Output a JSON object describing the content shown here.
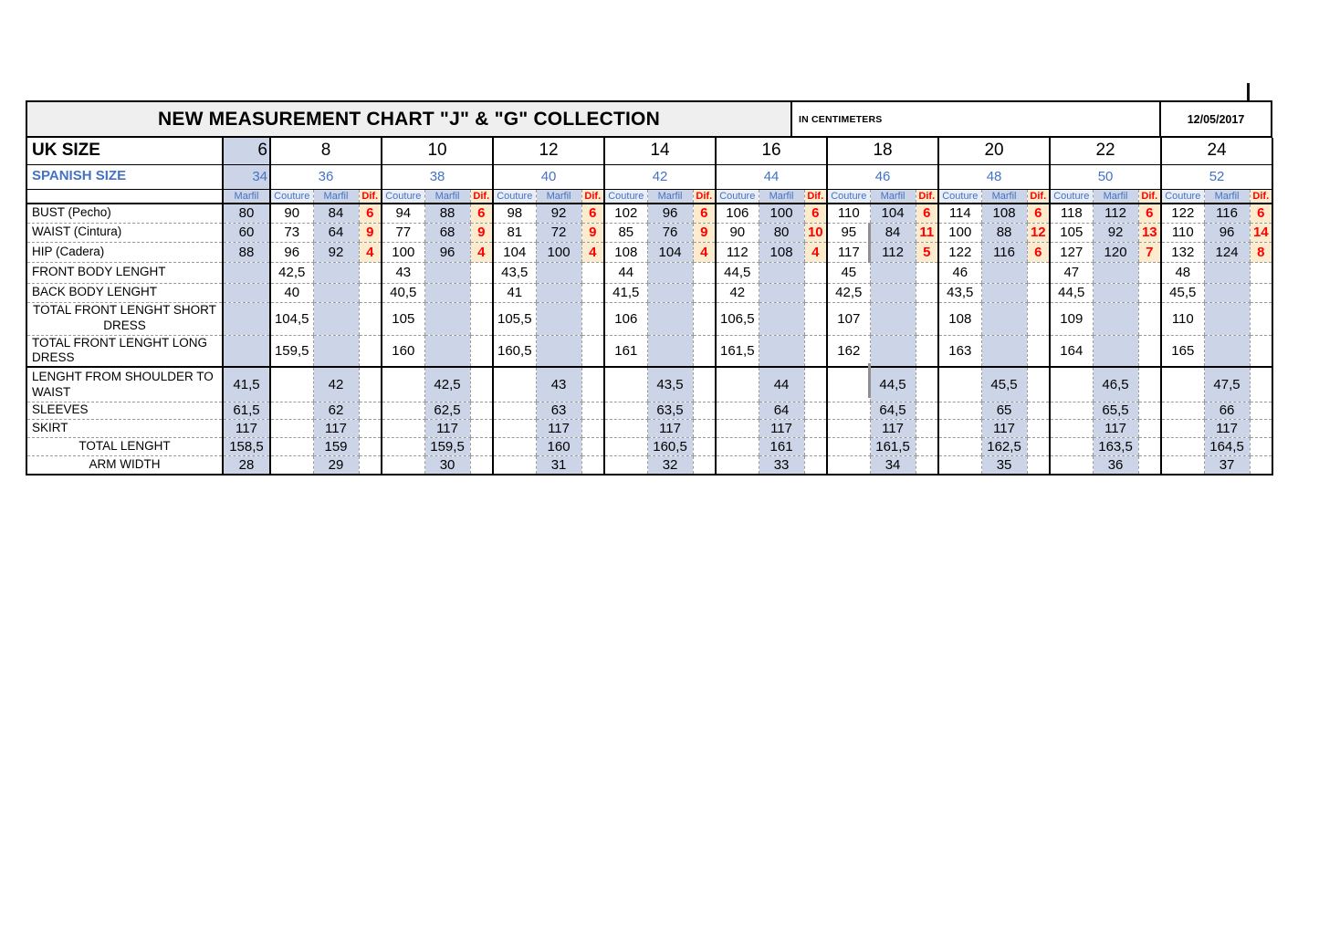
{
  "header": {
    "title": "NEW MEASUREMENT CHART \"J\" & \"G\" COLLECTION",
    "unit": "IN CENTIMETERS",
    "date": "12/05/2017"
  },
  "uk_size_label": "UK SIZE",
  "spanish_size_label": "SPANISH SIZE",
  "columns": {
    "couture": "Couture",
    "marfil": "Marfil",
    "dif": "Dif."
  },
  "sizes": [
    {
      "uk": "6",
      "spanish": "34"
    },
    {
      "uk": "8",
      "spanish": "36"
    },
    {
      "uk": "10",
      "spanish": "38"
    },
    {
      "uk": "12",
      "spanish": "40"
    },
    {
      "uk": "14",
      "spanish": "42"
    },
    {
      "uk": "16",
      "spanish": "44"
    },
    {
      "uk": "18",
      "spanish": "46"
    },
    {
      "uk": "20",
      "spanish": "48"
    },
    {
      "uk": "22",
      "spanish": "50"
    },
    {
      "uk": "24",
      "spanish": "52"
    }
  ],
  "rows": [
    {
      "label": "BUST (Pecho)",
      "type": "triple",
      "s6": "80",
      "cells": [
        [
          "90",
          "84",
          "6"
        ],
        [
          "94",
          "88",
          "6"
        ],
        [
          "98",
          "92",
          "6"
        ],
        [
          "102",
          "96",
          "6"
        ],
        [
          "106",
          "100",
          "6"
        ],
        [
          "110",
          "104",
          "6"
        ],
        [
          "114",
          "108",
          "6"
        ],
        [
          "118",
          "112",
          "6"
        ],
        [
          "122",
          "116",
          "6"
        ]
      ]
    },
    {
      "label": "WAIST (Cintura)",
      "type": "triple",
      "s6": "60",
      "cells": [
        [
          "73",
          "64",
          "9"
        ],
        [
          "77",
          "68",
          "9"
        ],
        [
          "81",
          "72",
          "9"
        ],
        [
          "85",
          "76",
          "9"
        ],
        [
          "90",
          "80",
          "10"
        ],
        [
          "95",
          "84",
          "11"
        ],
        [
          "100",
          "88",
          "12"
        ],
        [
          "105",
          "92",
          "13"
        ],
        [
          "110",
          "96",
          "14"
        ]
      ]
    },
    {
      "label": "HIP (Cadera)",
      "type": "triple",
      "s6": "88",
      "cells": [
        [
          "96",
          "92",
          "4"
        ],
        [
          "100",
          "96",
          "4"
        ],
        [
          "104",
          "100",
          "4"
        ],
        [
          "108",
          "104",
          "4"
        ],
        [
          "112",
          "108",
          "4"
        ],
        [
          "117",
          "112",
          "5"
        ],
        [
          "122",
          "116",
          "6"
        ],
        [
          "127",
          "120",
          "7"
        ],
        [
          "132",
          "124",
          "8"
        ]
      ]
    },
    {
      "label": "FRONT BODY LENGHT",
      "type": "couture",
      "s6": "",
      "values": [
        "42,5",
        "43",
        "43,5",
        "44",
        "44,5",
        "45",
        "46",
        "47",
        "48"
      ]
    },
    {
      "label": "BACK BODY LENGHT",
      "type": "couture",
      "s6": "",
      "values": [
        "40",
        "40,5",
        "41",
        "41,5",
        "42",
        "42,5",
        "43,5",
        "44,5",
        "45,5"
      ]
    },
    {
      "label": "TOTAL FRONT LENGHT SHORT DRESS",
      "type": "couture",
      "s6": "",
      "values": [
        "104,5",
        "105",
        "105,5",
        "106",
        "106,5",
        "107",
        "108",
        "109",
        "110"
      ]
    },
    {
      "label": "TOTAL FRONT LENGHT LONG DRESS",
      "type": "couture",
      "s6": "",
      "values": [
        "159,5",
        "160",
        "160,5",
        "161",
        "161,5",
        "162",
        "163",
        "164",
        "165"
      ]
    },
    {
      "label": "LENGHT FROM SHOULDER TO WAIST",
      "type": "marfil",
      "s6": "41,5",
      "values": [
        "42",
        "42,5",
        "43",
        "43,5",
        "44",
        "44,5",
        "45,5",
        "46,5",
        "47,5"
      ]
    },
    {
      "label": "SLEEVES",
      "type": "marfil",
      "s6": "61,5",
      "values": [
        "62",
        "62,5",
        "63",
        "63,5",
        "64",
        "64,5",
        "65",
        "65,5",
        "66"
      ]
    },
    {
      "label": "SKIRT",
      "type": "marfil",
      "s6": "117",
      "values": [
        "117",
        "117",
        "117",
        "117",
        "117",
        "117",
        "117",
        "117",
        "117"
      ]
    },
    {
      "label": "TOTAL LENGHT",
      "type": "marfil",
      "s6": "158,5",
      "values": [
        "159",
        "159,5",
        "160",
        "160,5",
        "161",
        "161,5",
        "162,5",
        "163,5",
        "164,5"
      ]
    },
    {
      "label": "ARM WIDTH",
      "type": "marfil",
      "s6": "28",
      "values": [
        "29",
        "30",
        "31",
        "32",
        "33",
        "34",
        "35",
        "36",
        "37"
      ]
    }
  ],
  "colors": {
    "accent_blue_text": "#4472C4",
    "marfil_fill": "#CCD4E8",
    "dif_fill": "#FCECCD",
    "dif_text": "#FF0000",
    "title_fill": "#EFEFEF"
  }
}
